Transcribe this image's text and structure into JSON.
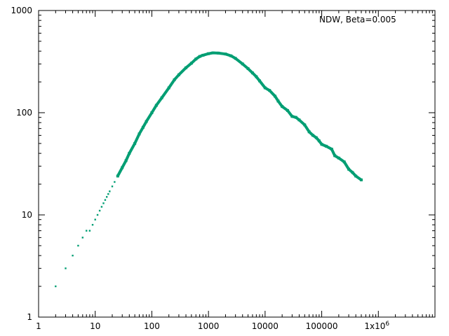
{
  "chart_data": {
    "type": "scatter",
    "title": "",
    "xlabel": "",
    "ylabel": "",
    "x_scale": "log",
    "y_scale": "log",
    "xlim": [
      1,
      10000000
    ],
    "ylim": [
      1,
      1000
    ],
    "x_ticks": [
      {
        "value": 1,
        "label": "1"
      },
      {
        "value": 10,
        "label": "10"
      },
      {
        "value": 100,
        "label": "100"
      },
      {
        "value": 1000,
        "label": "1000"
      },
      {
        "value": 10000,
        "label": "10000"
      },
      {
        "value": 100000,
        "label": "100000"
      }
    ],
    "x_last_tick": {
      "value": 1000000,
      "base": "1x10",
      "exp": "6"
    },
    "y_ticks": [
      {
        "value": 1,
        "label": "1"
      },
      {
        "value": 10,
        "label": "10"
      },
      {
        "value": 100,
        "label": "100"
      },
      {
        "value": 1000,
        "label": "1000"
      }
    ],
    "grid": false,
    "legend_position": "top-right",
    "series": [
      {
        "name": "NDW, Beta=0.005",
        "color": "#009e73",
        "x": [
          2,
          3,
          4,
          5,
          6,
          7,
          8,
          9,
          10,
          11,
          12,
          13,
          14,
          15,
          16,
          17,
          18,
          20,
          22,
          25,
          30,
          35,
          40,
          50,
          60,
          70,
          80,
          100,
          120,
          150,
          200,
          250,
          300,
          400,
          500,
          600,
          700,
          800,
          1000,
          1200,
          1500,
          2000,
          2500,
          3000,
          4000,
          5000,
          6000,
          7000,
          8000,
          10000,
          12000,
          15000,
          17000,
          20000,
          25000,
          30000,
          35000,
          40000,
          50000,
          60000,
          70000,
          80000,
          90000,
          100000,
          120000,
          150000,
          170000,
          200000,
          250000,
          300000,
          350000,
          400000,
          500000
        ],
        "y": [
          2,
          3,
          4,
          5,
          6,
          7,
          7,
          8,
          9,
          10,
          11,
          12,
          13,
          14,
          15,
          16,
          17,
          19,
          21,
          24,
          29,
          34,
          40,
          50,
          62,
          72,
          82,
          100,
          118,
          140,
          175,
          210,
          235,
          275,
          305,
          335,
          355,
          365,
          378,
          385,
          383,
          375,
          360,
          340,
          300,
          270,
          245,
          225,
          205,
          175,
          165,
          145,
          130,
          115,
          105,
          92,
          90,
          85,
          76,
          65,
          60,
          57,
          53,
          49,
          47,
          44,
          38,
          36,
          33,
          28,
          26,
          24,
          22
        ]
      }
    ]
  }
}
